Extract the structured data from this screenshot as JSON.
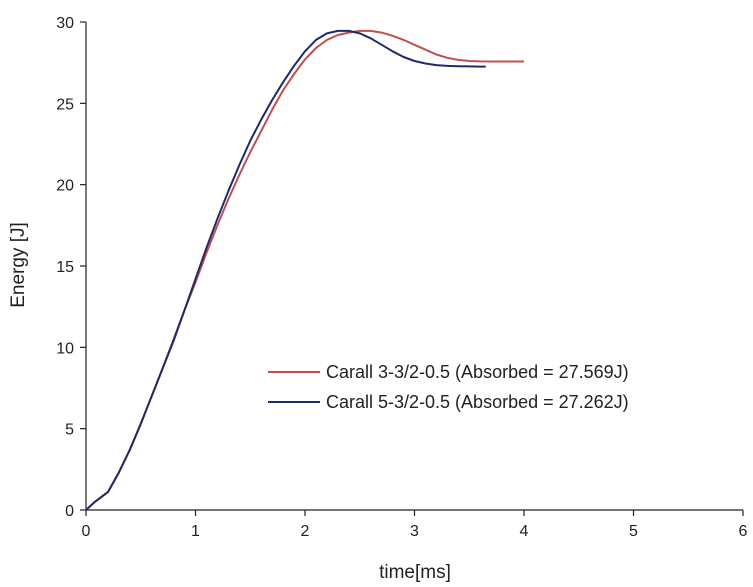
{
  "chart_data": {
    "type": "line",
    "title": "",
    "xlabel": "time[ms]",
    "ylabel": "Energy [J]",
    "xlim": [
      0,
      6
    ],
    "ylim": [
      0,
      30
    ],
    "xticks": [
      0,
      1,
      2,
      3,
      4,
      5,
      6
    ],
    "yticks": [
      0,
      5,
      10,
      15,
      20,
      25,
      30
    ],
    "grid": false,
    "legend_position": "center-right",
    "series": [
      {
        "name": "Carall 3-3/2-0.5 (Absorbed = 27.569J)",
        "color": "#c0504d",
        "x": [
          0,
          0.08,
          0.2,
          0.3,
          0.4,
          0.5,
          0.6,
          0.7,
          0.8,
          0.9,
          1.0,
          1.1,
          1.2,
          1.3,
          1.4,
          1.5,
          1.6,
          1.7,
          1.8,
          1.9,
          2.0,
          2.1,
          2.2,
          2.3,
          2.4,
          2.5,
          2.6,
          2.7,
          2.8,
          2.9,
          3.0,
          3.1,
          3.2,
          3.3,
          3.4,
          3.5,
          3.6,
          3.7,
          3.8,
          3.9,
          4.0
        ],
        "y": [
          0,
          0.5,
          1.1,
          2.3,
          3.7,
          5.3,
          7.0,
          8.7,
          10.5,
          12.3,
          14.0,
          15.8,
          17.5,
          19.1,
          20.6,
          22.0,
          23.3,
          24.6,
          25.8,
          26.8,
          27.7,
          28.4,
          28.9,
          29.2,
          29.35,
          29.45,
          29.45,
          29.35,
          29.15,
          28.9,
          28.6,
          28.3,
          28.0,
          27.8,
          27.67,
          27.6,
          27.58,
          27.57,
          27.57,
          27.57,
          27.57
        ]
      },
      {
        "name": "Carall 5-3/2-0.5 (Absorbed = 27.262J)",
        "color": "#1f2a6b",
        "x": [
          0,
          0.08,
          0.2,
          0.3,
          0.4,
          0.5,
          0.6,
          0.7,
          0.8,
          0.9,
          1.0,
          1.1,
          1.2,
          1.3,
          1.4,
          1.5,
          1.6,
          1.7,
          1.8,
          1.9,
          2.0,
          2.1,
          2.2,
          2.3,
          2.4,
          2.5,
          2.6,
          2.7,
          2.8,
          2.9,
          3.0,
          3.1,
          3.2,
          3.3,
          3.4,
          3.5,
          3.6,
          3.65
        ],
        "y": [
          0,
          0.5,
          1.1,
          2.3,
          3.7,
          5.3,
          7.0,
          8.7,
          10.4,
          12.3,
          14.2,
          16.1,
          17.9,
          19.6,
          21.2,
          22.7,
          24.0,
          25.2,
          26.3,
          27.3,
          28.2,
          28.9,
          29.3,
          29.45,
          29.45,
          29.3,
          29.0,
          28.6,
          28.2,
          27.85,
          27.6,
          27.45,
          27.35,
          27.3,
          27.28,
          27.27,
          27.26,
          27.26
        ]
      }
    ]
  }
}
